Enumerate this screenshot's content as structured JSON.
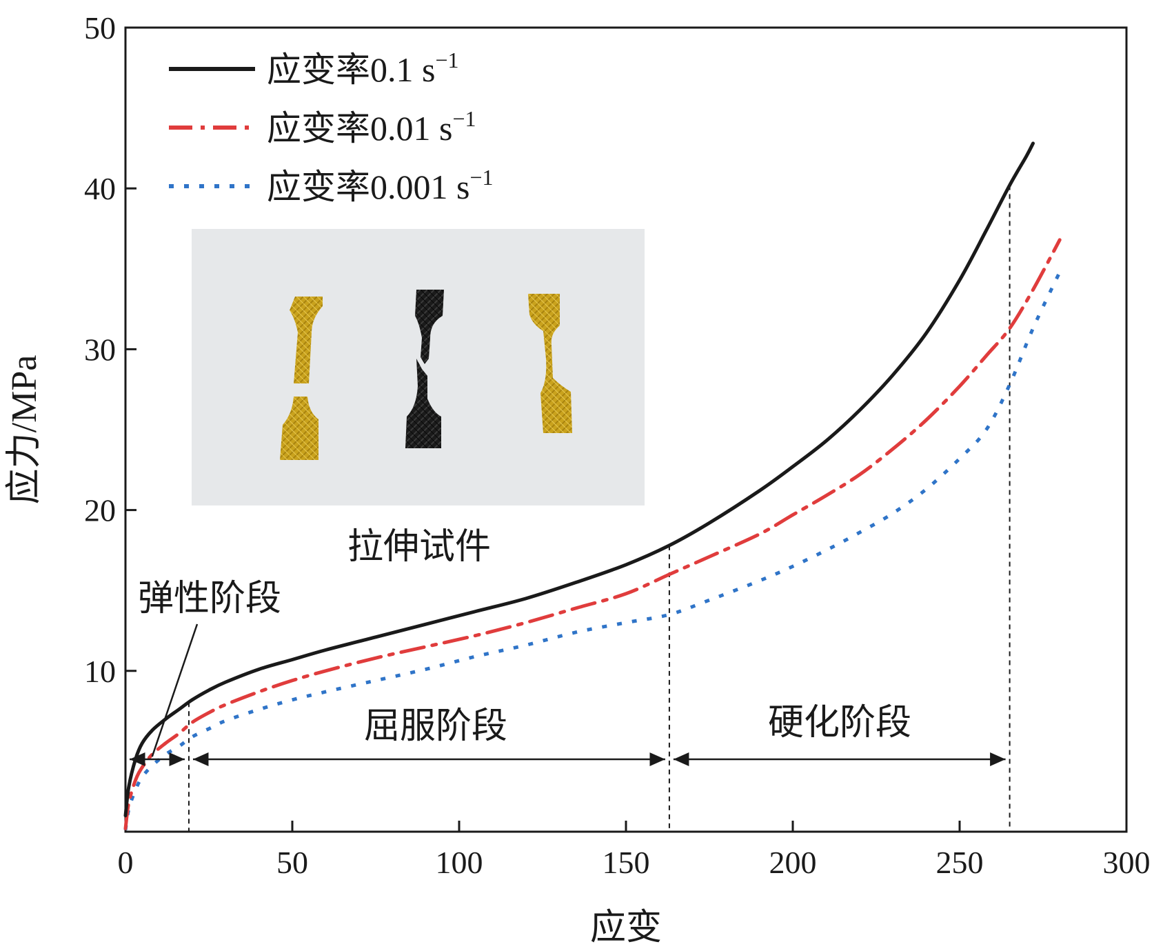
{
  "chart_data": {
    "type": "line",
    "xlabel": "应变",
    "ylabel": "应力/MPa",
    "xlim": [
      0,
      300
    ],
    "ylim": [
      0,
      50
    ],
    "xticks": [
      0,
      50,
      100,
      150,
      200,
      250,
      300
    ],
    "yticks": [
      10,
      20,
      30,
      40,
      50
    ],
    "xtick_labels": [
      "0",
      "50",
      "100",
      "150",
      "200",
      "250",
      "300"
    ],
    "ytick_labels": [
      "10",
      "20",
      "30",
      "40",
      "50"
    ],
    "grid": false,
    "legend_position": "top-left",
    "series": [
      {
        "name": "应变率0.1 s⁻¹",
        "legend_text": "应变率0.1 s",
        "legend_sup": "−1",
        "color": "#1a1a1a",
        "style": "solid",
        "x": [
          0,
          1,
          3,
          5,
          8,
          12,
          16,
          20,
          25,
          30,
          40,
          50,
          60,
          75,
          90,
          105,
          120,
          135,
          150,
          163,
          175,
          190,
          200,
          210,
          220,
          230,
          240,
          250,
          258,
          265,
          270,
          272
        ],
        "y": [
          1.0,
          2.8,
          4.5,
          5.5,
          6.3,
          7.0,
          7.6,
          8.2,
          8.8,
          9.3,
          10.1,
          10.7,
          11.3,
          12.1,
          12.9,
          13.7,
          14.5,
          15.5,
          16.6,
          17.8,
          19.2,
          21.2,
          22.7,
          24.3,
          26.2,
          28.4,
          31.0,
          34.3,
          37.4,
          40.2,
          42.0,
          42.8
        ]
      },
      {
        "name": "应变率0.01 s⁻¹",
        "legend_text": "应变率0.01 s",
        "legend_sup": "−1",
        "color": "#e03c3c",
        "style": "dashdot",
        "x": [
          0,
          1,
          3,
          5,
          8,
          12,
          16,
          20,
          25,
          30,
          40,
          50,
          60,
          75,
          90,
          105,
          120,
          135,
          150,
          163,
          175,
          190,
          200,
          210,
          220,
          230,
          240,
          250,
          258,
          265,
          272,
          280
        ],
        "y": [
          0.2,
          1.8,
          3.2,
          4.0,
          4.8,
          5.5,
          6.1,
          6.8,
          7.4,
          7.9,
          8.7,
          9.4,
          10.0,
          10.8,
          11.5,
          12.2,
          13.0,
          13.9,
          14.8,
          16.0,
          17.1,
          18.5,
          19.7,
          20.9,
          22.2,
          23.8,
          25.6,
          27.7,
          29.6,
          31.3,
          33.7,
          36.8
        ]
      },
      {
        "name": "应变率0.001 s⁻¹",
        "legend_text": "应变率0.001 s",
        "legend_sup": "−1",
        "color": "#2f74c8",
        "style": "dotted",
        "x": [
          0,
          1,
          3,
          5,
          8,
          12,
          16,
          20,
          25,
          30,
          40,
          50,
          60,
          75,
          90,
          105,
          120,
          135,
          150,
          163,
          175,
          190,
          200,
          210,
          220,
          230,
          240,
          250,
          258,
          265,
          272,
          280
        ],
        "y": [
          0.1,
          1.4,
          2.6,
          3.4,
          4.1,
          4.8,
          5.3,
          5.9,
          6.4,
          6.9,
          7.6,
          8.2,
          8.7,
          9.4,
          10.1,
          10.9,
          11.6,
          12.4,
          13.0,
          13.5,
          14.4,
          15.6,
          16.5,
          17.5,
          18.6,
          19.8,
          21.3,
          23.2,
          25.0,
          27.8,
          31.3,
          34.8
        ]
      }
    ],
    "vlines": [
      19,
      163,
      265
    ],
    "stage_arrows": [
      {
        "label": "",
        "from": 0,
        "to": 19,
        "y": 4.5
      },
      {
        "label": "屈服阶段",
        "from": 19,
        "to": 163,
        "y": 4.5
      },
      {
        "label": "硬化阶段",
        "from": 163,
        "to": 265,
        "y": 4.5
      }
    ],
    "annotations": [
      {
        "label": "弹性阶段",
        "pointer_to": [
          8,
          4.5
        ]
      }
    ],
    "inset_photo": {
      "caption": "拉伸试件",
      "specimen_colors": [
        "#c9a21d",
        "#1b1b1b",
        "#d1aa28"
      ]
    }
  }
}
